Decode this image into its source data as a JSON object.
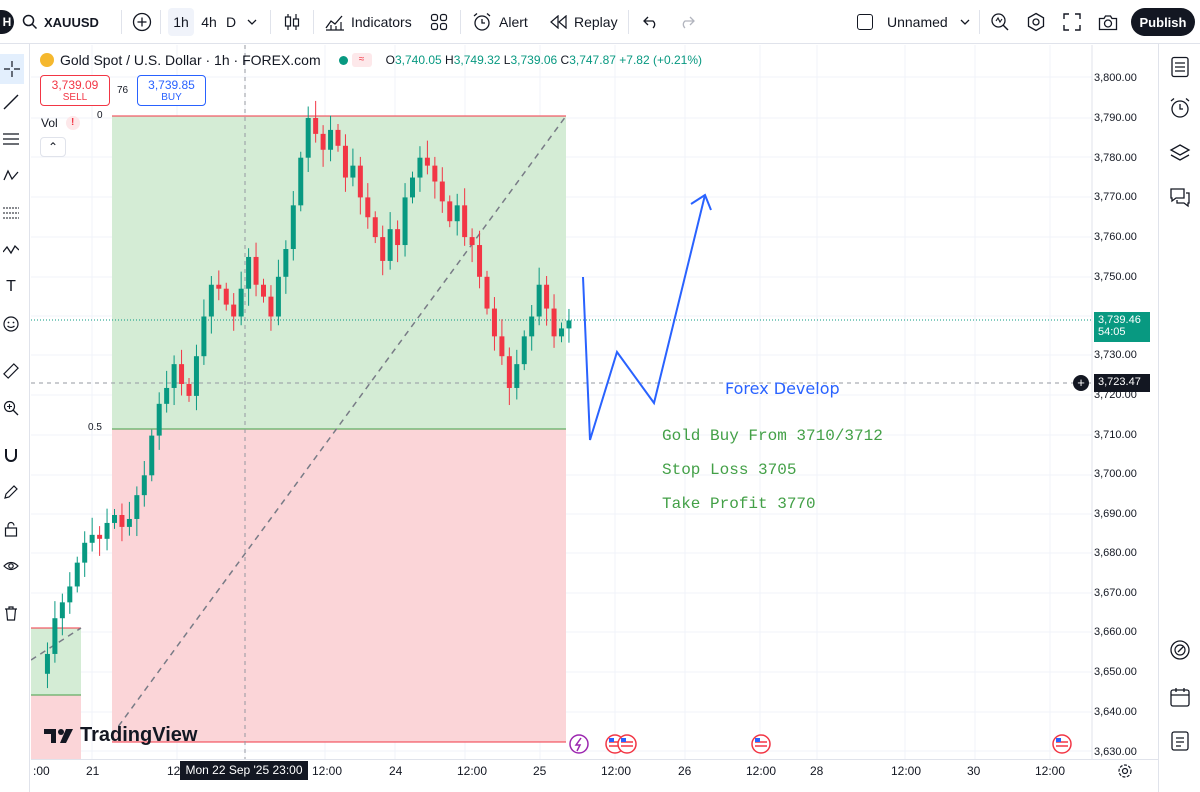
{
  "header": {
    "symbol": "XAUUSD",
    "intervals": [
      "1h",
      "4h",
      "D"
    ],
    "indicators_label": "Indicators",
    "alert_label": "Alert",
    "replay_label": "Replay",
    "layout_name": "Unnamed",
    "publish_label": "Publish"
  },
  "legend": {
    "title": "Gold Spot / U.S. Dollar · 1h · FOREX.com",
    "o_label": "O",
    "o": "3,740.05",
    "h_label": "H",
    "h": "3,749.32",
    "l_label": "L",
    "l": "3,739.06",
    "c_label": "C",
    "c": "3,747.87",
    "change": "+7.82 (+0.21%)"
  },
  "trade": {
    "sell_price": "3,739.09",
    "sell_label": "SELL",
    "spread": "76",
    "buy_price": "3,739.85",
    "buy_label": "BUY"
  },
  "volume": {
    "label": "Vol",
    "warning": "!"
  },
  "fib": {
    "top_label": "0",
    "mid_label": "0.5"
  },
  "annotations": {
    "brand": "Forex Develop",
    "buy": "Gold Buy From 3710/3712",
    "stop": "Stop Loss 3705",
    "tp": "Take Profit 3770"
  },
  "price_axis": {
    "labels": [
      "3,800.00",
      "3,790.00",
      "3,780.00",
      "3,770.00",
      "3,760.00",
      "3,750.00",
      "3,730.00",
      "3,720.00",
      "3,710.00",
      "3,700.00",
      "3,690.00",
      "3,680.00",
      "3,670.00",
      "3,660.00",
      "3,650.00",
      "3,640.00",
      "3,630.00"
    ],
    "current_price": "3,739.46",
    "countdown": "54:05",
    "crosshair_price": "3,723.47"
  },
  "time_axis": {
    "labels": [
      ":00",
      "21",
      "12",
      "12:00",
      "24",
      "12:00",
      "25",
      "12:00",
      "26",
      "12:00",
      "28",
      "12:00",
      "30",
      "12:00"
    ],
    "crosshair_time": "Mon 22 Sep '25   23:00"
  },
  "branding": "TradingView",
  "colors": {
    "up": "#089981",
    "down": "#f23645",
    "green_zone": "#d4ecd5",
    "red_zone": "#fbd5d8",
    "projection": "#2962ff",
    "annotation": "#43a047"
  }
}
